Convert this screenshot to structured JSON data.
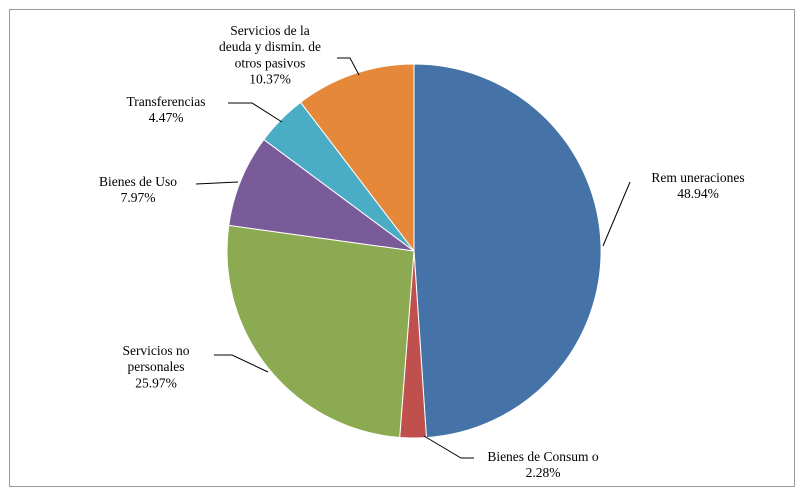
{
  "chart_data": {
    "type": "pie",
    "title": "",
    "start_angle_deg": 0,
    "direction": "clockwise",
    "slices": [
      {
        "id": "remuneraciones",
        "label_lines": [
          "Rem uneraciones",
          "48.94%"
        ],
        "value": 48.94,
        "color": "#4572A7"
      },
      {
        "id": "bienes-de-consumo",
        "label_lines": [
          "Bienes de Consum o",
          "2.28%"
        ],
        "value": 2.28,
        "color": "#C0504D"
      },
      {
        "id": "servicios-no-personales",
        "label_lines": [
          "Servicios no",
          "personales",
          "25.97%"
        ],
        "value": 25.97,
        "color": "#8CAA52"
      },
      {
        "id": "bienes-de-uso",
        "label_lines": [
          "Bienes de Uso",
          "7.97%"
        ],
        "value": 7.97,
        "color": "#7A5B9A"
      },
      {
        "id": "transferencias",
        "label_lines": [
          "Transferencias",
          "4.47%"
        ],
        "value": 4.47,
        "color": "#4BACC6"
      },
      {
        "id": "servicios-de-la-deuda",
        "label_lines": [
          "Servicios de la",
          "deuda y dismin. de",
          "otros pasivos",
          "10.37%"
        ],
        "value": 10.37,
        "color": "#E6883A"
      }
    ]
  }
}
